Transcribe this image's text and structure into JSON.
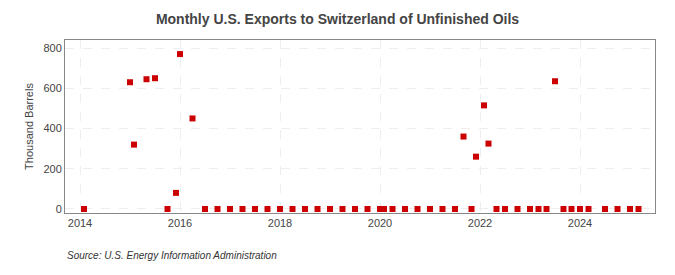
{
  "chart_data": {
    "type": "scatter",
    "title": "Monthly U.S. Exports to Switzerland of Unfinished Oils",
    "ylabel": "Thousand Barrels",
    "annotations": [
      "Source: U.S. Energy Information Administration"
    ],
    "color": "#cc0000",
    "marker": "square",
    "grid": true,
    "xlim": [
      2013.7,
      2025.5
    ],
    "ylim": [
      -20,
      840
    ],
    "xticks": [
      2014,
      2016,
      2018,
      2020,
      2022,
      2024
    ],
    "yticks": [
      0,
      200,
      400,
      600,
      800
    ],
    "x": [
      2014.08,
      2015.0,
      2015.08,
      2015.33,
      2015.5,
      2015.75,
      2015.92,
      2016.0,
      2016.25,
      2016.5,
      2016.75,
      2017.0,
      2017.25,
      2017.5,
      2017.75,
      2018.0,
      2018.25,
      2018.5,
      2018.75,
      2019.0,
      2019.25,
      2019.5,
      2019.75,
      2020.0,
      2020.08,
      2020.25,
      2020.5,
      2020.75,
      2021.0,
      2021.25,
      2021.5,
      2021.67,
      2021.83,
      2021.92,
      2022.08,
      2022.17,
      2022.33,
      2022.5,
      2022.75,
      2023.0,
      2023.17,
      2023.33,
      2023.5,
      2023.67,
      2023.83,
      2024.0,
      2024.17,
      2024.5,
      2024.75,
      2025.0,
      2025.17
    ],
    "values": [
      0,
      630,
      320,
      645,
      650,
      0,
      80,
      770,
      450,
      0,
      0,
      0,
      0,
      0,
      0,
      0,
      0,
      0,
      0,
      0,
      0,
      0,
      0,
      0,
      0,
      0,
      0,
      0,
      0,
      0,
      0,
      360,
      0,
      260,
      515,
      325,
      0,
      0,
      0,
      0,
      0,
      0,
      635,
      0,
      0,
      0,
      0,
      0,
      0,
      0,
      0
    ]
  }
}
